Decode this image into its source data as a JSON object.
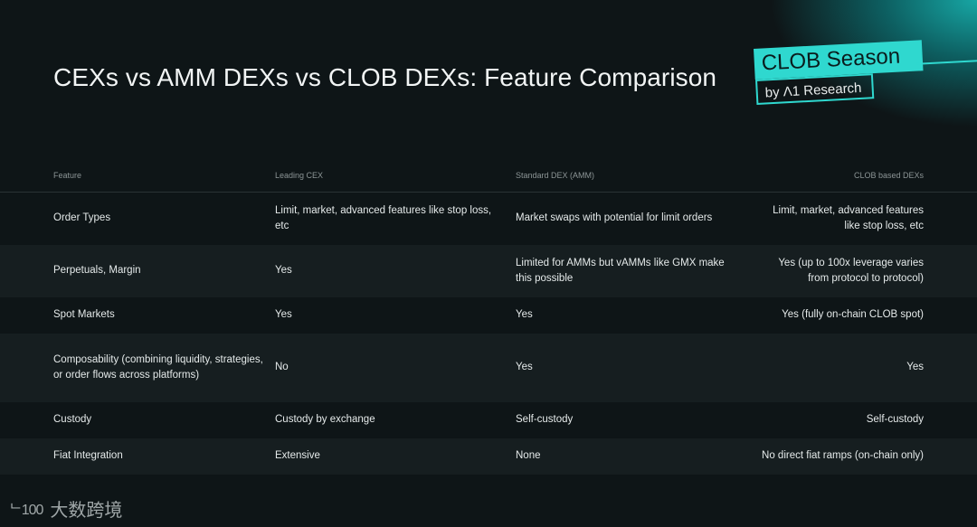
{
  "title": "CEXs vs AMM DEXs vs CLOB DEXs: Feature Comparison",
  "logo": {
    "main": "CLOB Season",
    "sub": "by Λ1 Research"
  },
  "table": {
    "headers": [
      "Feature",
      "Leading CEX",
      "Standard DEX (AMM)",
      "CLOB based DEXs"
    ],
    "rows": [
      [
        "Order Types",
        "Limit, market, advanced features like stop loss, etc",
        "Market swaps with potential for limit orders",
        "Limit, market, advanced features like stop loss, etc"
      ],
      [
        "Perpetuals, Margin",
        "Yes",
        "Limited for AMMs but vAMMs like GMX make this possible",
        "Yes (up to 100x leverage varies from protocol to protocol)"
      ],
      [
        "Spot Markets",
        "Yes",
        "Yes",
        "Yes (fully on-chain CLOB spot)"
      ],
      [
        "Composability (combining liquidity, strategies, or order flows across platforms)",
        "No",
        "Yes",
        "Yes"
      ],
      [
        "Custody",
        "Custody by exchange",
        "Self-custody",
        "Self-custody"
      ],
      [
        "Fiat Integration",
        "Extensive",
        "None",
        "No direct fiat ramps (on-chain only)"
      ]
    ]
  },
  "watermark": {
    "mark": "ᄂ100",
    "text": "大数跨境"
  }
}
